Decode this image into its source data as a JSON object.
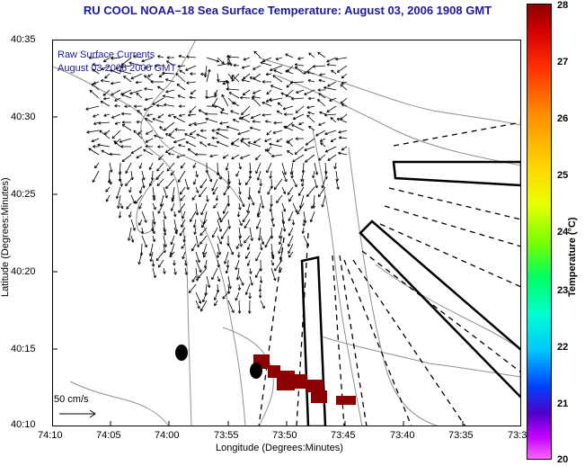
{
  "title": "RU COOL  NOAA–18  Sea Surface Temperature:  August 03, 2006 1908 GMT",
  "annotation_line1": "Raw Surface Currents",
  "annotation_line2": "August 03 2006 2000 GMT",
  "scale_label": "50 cm/s",
  "x_axis_label": "Longitude (Degrees:Minutes)",
  "y_axis_label": "Latitude (Degrees:Minutes)",
  "x_ticks": [
    "74:10",
    "74:05",
    "74:00",
    "73:55",
    "73:50",
    "73:45",
    "73:40",
    "73:35",
    "73:3"
  ],
  "y_ticks": [
    "40:35",
    "40:30",
    "40:25",
    "40:20",
    "40:15",
    "40:10"
  ],
  "colorbar": {
    "label": "Temperature (°C)",
    "ticks": [
      "28",
      "27",
      "26",
      "25",
      "24",
      "23",
      "22",
      "21",
      "20"
    ],
    "min": 20,
    "max": 28
  }
}
